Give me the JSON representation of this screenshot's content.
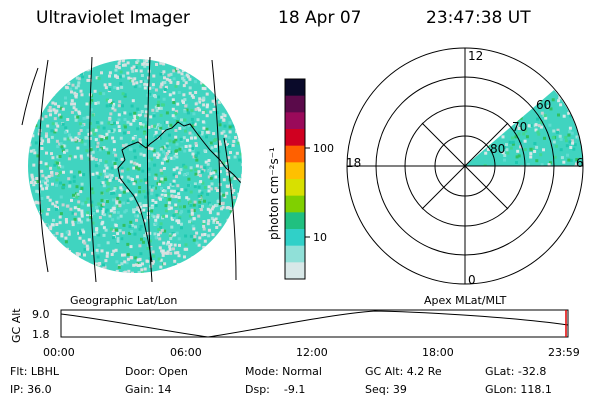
{
  "header": {
    "title": "Ultraviolet Imager",
    "date": "18 Apr 07",
    "time": "23:47:38 UT"
  },
  "colorbar": {
    "unit_label": "photon cm⁻²s⁻¹",
    "ticks": [
      "100",
      "10"
    ],
    "colors": [
      "#0a0a2a",
      "#5a0a4a",
      "#9a0a5a",
      "#d00020",
      "#ff6000",
      "#ffc000",
      "#d8e000",
      "#80d000",
      "#20c080",
      "#30d0c8",
      "#90e0d8",
      "#d8e8e8"
    ]
  },
  "polar_plot": {
    "mlt_top": "12",
    "mlt_left": "18",
    "mlt_right": "6",
    "mlt_bottom": "0",
    "lat_60": "60",
    "lat_70": "70",
    "lat_80": "80"
  },
  "projection_labels": {
    "left": "Geographic Lat/Lon",
    "right": "Apex MLat/MLT"
  },
  "altitude_plot": {
    "axis_label": "GC Alt",
    "y_max": "9.0",
    "y_min": "1.8",
    "x_ticks": [
      "00:00",
      "06:00",
      "12:00",
      "18:00",
      "23:59"
    ]
  },
  "status": {
    "flt": "Flt: LBHL",
    "ip": "IP: 36.0",
    "door": "Door: Open",
    "gain": "Gain: 14",
    "mode": "Mode: Normal",
    "dsp": "Dsp:    -9.1",
    "gc_alt": "GC Alt: 4.2 Re",
    "seq": "Seq: 39",
    "glat": "GLat: -32.8",
    "glon": "GLon: 118.1"
  }
}
